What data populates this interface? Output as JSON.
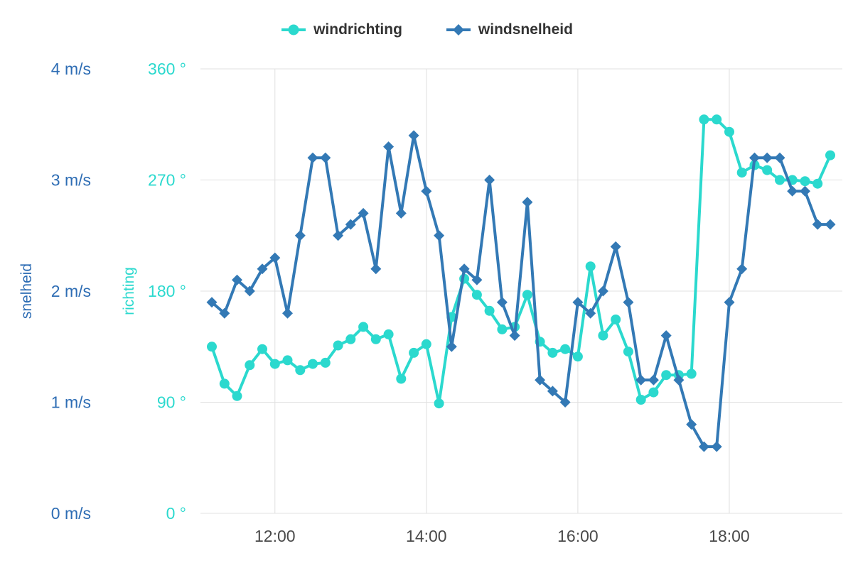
{
  "legend": {
    "items": [
      {
        "label": "windrichting"
      },
      {
        "label": "windsnelheid"
      }
    ]
  },
  "chart_data": {
    "type": "line",
    "title": "",
    "grid": true,
    "legend_position": "top",
    "x": [
      "11:10",
      "11:20",
      "11:30",
      "11:40",
      "11:50",
      "12:00",
      "12:10",
      "12:20",
      "12:30",
      "12:40",
      "12:50",
      "13:00",
      "13:10",
      "13:20",
      "13:30",
      "13:40",
      "13:50",
      "14:00",
      "14:10",
      "14:20",
      "14:30",
      "14:40",
      "14:50",
      "15:00",
      "15:10",
      "15:20",
      "15:30",
      "15:40",
      "15:50",
      "16:00",
      "16:10",
      "16:20",
      "16:30",
      "16:40",
      "16:50",
      "17:00",
      "17:10",
      "17:20",
      "17:30",
      "17:40",
      "17:50",
      "18:00",
      "18:10",
      "18:20",
      "18:30",
      "18:40",
      "18:50",
      "19:00",
      "19:10",
      "19:20"
    ],
    "x_tick_labels": [
      "12:00",
      "14:00",
      "16:00",
      "18:00"
    ],
    "series": [
      {
        "name": "windrichting",
        "axis": "direction",
        "marker": "circle",
        "color": "#2bd9ce",
        "unit": "°",
        "values": [
          135,
          105,
          95,
          120,
          133,
          121,
          124,
          116,
          121,
          122,
          136,
          141,
          151,
          141,
          145,
          109,
          130,
          137,
          89,
          159,
          190,
          177,
          164,
          149,
          151,
          177,
          139,
          130,
          133,
          127,
          200,
          144,
          157,
          131,
          92,
          98,
          112,
          112,
          113,
          319,
          319,
          309,
          276,
          282,
          278,
          270,
          270,
          269,
          267,
          290
        ]
      },
      {
        "name": "windsnelheid",
        "axis": "speed",
        "marker": "diamond",
        "color": "#3379b5",
        "unit": "m/s",
        "values": [
          1.9,
          1.8,
          2.1,
          2.0,
          2.2,
          2.3,
          1.8,
          2.5,
          3.2,
          3.2,
          2.5,
          2.6,
          2.7,
          2.2,
          3.3,
          2.7,
          3.4,
          2.9,
          2.5,
          1.5,
          2.2,
          2.1,
          3.0,
          1.9,
          1.6,
          2.8,
          1.2,
          1.1,
          1.0,
          1.9,
          1.8,
          2.0,
          2.4,
          1.9,
          1.2,
          1.2,
          1.6,
          1.2,
          0.8,
          0.6,
          0.6,
          1.9,
          2.2,
          3.2,
          3.2,
          3.2,
          2.9,
          2.9,
          2.6,
          2.6
        ]
      }
    ],
    "axes": {
      "speed": {
        "title": "snelheid",
        "color": "#2e6db4",
        "ticks": [
          "0 m/s",
          "1 m/s",
          "2 m/s",
          "3 m/s",
          "4 m/s"
        ],
        "min": 0,
        "max": 4
      },
      "direction": {
        "title": "richting",
        "color": "#2bd9ce",
        "ticks": [
          "0 °",
          "90 °",
          "180 °",
          "270 °",
          "360 °"
        ],
        "min": 0,
        "max": 360
      }
    },
    "colors": {
      "grid": "#e0e0e0",
      "x_tick": "#4a4a4a",
      "legend_text": "#333333",
      "background": "#ffffff"
    }
  }
}
